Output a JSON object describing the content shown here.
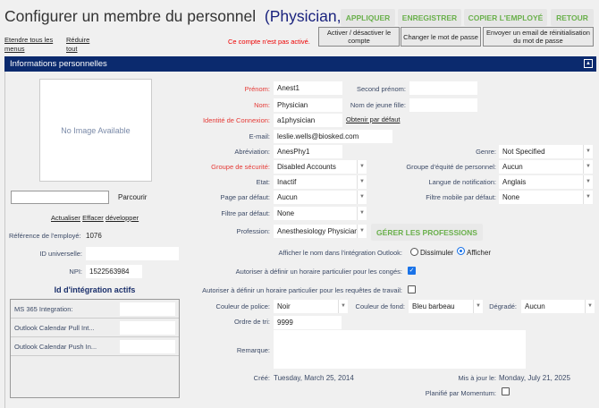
{
  "header": {
    "title": "Configurer un membre du personnel",
    "name": "(Physician, Anest1)",
    "buttons": {
      "apply": "APPLIQUER",
      "save": "ENREGISTRER",
      "copy": "COPIER L'EMPLOYÉ",
      "back": "RETOUR"
    },
    "links": {
      "expand": "Etendre tous les menus",
      "collapse": "Réduire tout"
    },
    "status": "Ce compte n'est pas activé.",
    "actions": {
      "toggle": "Activer / désactiver le compte",
      "password": "Changer le mot de passe",
      "reset_email": "Envoyer un email de réinitialisation du mot de passe"
    }
  },
  "section": {
    "title": "Informations personnelles",
    "collapse_icon": "caret-up"
  },
  "left": {
    "no_image": "No Image Available",
    "browse": "Parcourir",
    "file_value": "",
    "links": {
      "refresh": "Actualiser",
      "clear": "Effacer",
      "expand": "développer"
    },
    "employee_ref_label": "Référence de l'employé:",
    "employee_ref": "1076",
    "universal_id_label": "ID universelle:",
    "universal_id": "",
    "npi_label": "NPI:",
    "npi": "1522563984",
    "integration_title": "Id d'intégration actifs",
    "integrations": [
      {
        "label": "MS 365 Integration:",
        "value": ""
      },
      {
        "label": "Outlook Calendar Pull Int...",
        "value": ""
      },
      {
        "label": "Outlook Calendar Push In...",
        "value": ""
      }
    ]
  },
  "form": {
    "first_name": {
      "label": "Prénom:",
      "value": "Anest1"
    },
    "middle_name": {
      "label": "Second prénom:",
      "value": ""
    },
    "last_name": {
      "label": "Nom:",
      "value": "Physician"
    },
    "maiden_name": {
      "label": "Nom de jeune fille:",
      "value": ""
    },
    "login": {
      "label": "Identité de Connexion:",
      "value": "a1physician",
      "default_link": "Obtenir par défaut"
    },
    "email": {
      "label": "E-mail:",
      "value": "leslie.wells@biosked.com"
    },
    "abbrev": {
      "label": "Abréviation:",
      "value": "AnesPhy1"
    },
    "gender": {
      "label": "Genre:",
      "value": "Not Specified"
    },
    "security_group": {
      "label": "Groupe de sécurité:",
      "value": "Disabled Accounts"
    },
    "equity_group": {
      "label": "Groupe d'équité de personnel:",
      "value": "Aucun"
    },
    "state": {
      "label": "Etat:",
      "value": "Inactif"
    },
    "notif_lang": {
      "label": "Langue de notification:",
      "value": "Anglais"
    },
    "default_page": {
      "label": "Page par défaut:",
      "value": "Aucun"
    },
    "mobile_filter": {
      "label": "Filtre mobile par défaut:",
      "value": "None"
    },
    "default_filter": {
      "label": "Filtre par défaut:",
      "value": "None"
    },
    "profession": {
      "label": "Profession:",
      "value": "Anesthesiology Physician",
      "manage": "GÉRER LES PROFESSIONS"
    },
    "outlook": {
      "label": "Afficher le nom dans l'intégration Outlook:",
      "hide": "Dissimuler",
      "show": "Afficher",
      "selected": "Afficher"
    },
    "leave_schedule": {
      "label": "Autoriser à définir un horaire particulier pour les congés:",
      "checked": true
    },
    "work_schedule": {
      "label": "Autoriser à définir un horaire particulier pour les requêtes de travail:",
      "checked": false
    },
    "font_color": {
      "label": "Couleur de police:",
      "value": "Noir"
    },
    "bg_color": {
      "label": "Couleur de fond:",
      "value": "Bleu barbeau"
    },
    "gradient": {
      "label": "Dégradé:",
      "value": "Aucun"
    },
    "sort_order": {
      "label": "Ordre de tri:",
      "value": "9999"
    },
    "remark": {
      "label": "Remarque:",
      "value": ""
    },
    "created": {
      "label": "Créé:",
      "value": "Tuesday, March 25, 2014"
    },
    "updated": {
      "label": "Mis à jour le:",
      "value": "Monday, July 21, 2025"
    },
    "momentum": {
      "label": "Planifié par Momentum:",
      "checked": false
    }
  },
  "colors": {
    "header": "#0b2a6e",
    "accent_green": "#6ab04c",
    "required": "#e53935"
  }
}
